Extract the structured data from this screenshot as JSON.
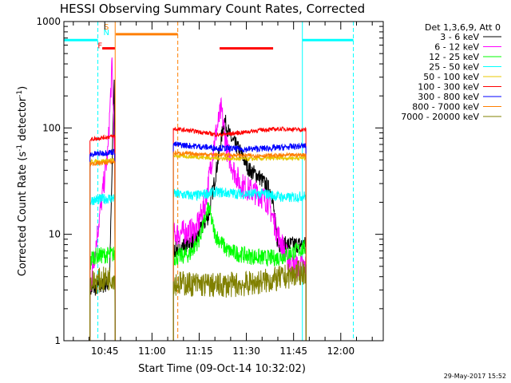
{
  "chart_data": {
    "type": "line",
    "title": "HESSI Observing Summary Count Rates, Corrected",
    "xlabel": "Start Time (09-Oct-14 10:32:02)",
    "ylabel_main": "Corrected Count Rate (s",
    "ylabel_sup1": "-1",
    "ylabel_mid": " detector",
    "ylabel_sup2": "-1",
    "ylabel_end": ")",
    "yscale": "log",
    "ylim": [
      1,
      1000
    ],
    "xlim_minutes": [
      632.0,
      733.5
    ],
    "x_ticks": [
      {
        "label": "10:45",
        "m": 645
      },
      {
        "label": "11:00",
        "m": 660
      },
      {
        "label": "11:15",
        "m": 675
      },
      {
        "label": "11:30",
        "m": 690
      },
      {
        "label": "11:45",
        "m": 705
      },
      {
        "label": "12:00",
        "m": 720
      }
    ],
    "y_ticks": [
      {
        "label": "1",
        "v": 1
      },
      {
        "label": "10",
        "v": 10
      },
      {
        "label": "100",
        "v": 100
      },
      {
        "label": "1000",
        "v": 1000
      }
    ],
    "legend_header": "Det 1,3,6,9, Att 0",
    "timestamp": "29-May-2017 15:52",
    "intervals": [
      {
        "start": 640.3,
        "end": 648.3
      },
      {
        "start": 666.8,
        "end": 709.0
      }
    ],
    "series": [
      {
        "name": "3 - 6 keV",
        "color": "#000000",
        "base": [
          [
            640.3,
            3
          ],
          [
            646.5,
            3.5
          ],
          [
            648.0,
            300
          ],
          [
            648.3,
            10
          ],
          [
            666.8,
            7
          ],
          [
            674,
            9
          ],
          [
            678,
            15
          ],
          [
            681,
            50
          ],
          [
            683,
            120
          ],
          [
            685,
            80
          ],
          [
            688,
            60
          ],
          [
            691,
            40
          ],
          [
            694,
            35
          ],
          [
            698,
            25
          ],
          [
            700,
            8
          ]
        ],
        "noise": 0.08
      },
      {
        "name": "6 - 12 keV",
        "color": "#ff00ff",
        "base": [
          [
            640.3,
            3
          ],
          [
            645,
            35
          ],
          [
            646,
            60
          ],
          [
            647.3,
            380
          ],
          [
            648.3,
            40
          ],
          [
            666.8,
            10
          ],
          [
            674,
            11
          ],
          [
            677,
            20
          ],
          [
            680,
            80
          ],
          [
            682,
            150
          ],
          [
            684,
            60
          ],
          [
            686,
            40
          ],
          [
            688,
            30
          ],
          [
            691,
            26
          ],
          [
            694,
            24
          ],
          [
            697,
            20
          ],
          [
            700,
            10
          ],
          [
            703,
            6
          ],
          [
            705,
            5
          ]
        ],
        "noise": 0.12
      },
      {
        "name": "12 - 25 keV",
        "color": "#00ff00",
        "base": [
          [
            640.3,
            5
          ],
          [
            641,
            6.2
          ],
          [
            648.3,
            6.5
          ],
          [
            666.8,
            6
          ],
          [
            672,
            6.5
          ],
          [
            675,
            9
          ],
          [
            678,
            18
          ],
          [
            680,
            10
          ],
          [
            684,
            7
          ],
          [
            690,
            6.3
          ],
          [
            696,
            6
          ],
          [
            700,
            6
          ],
          [
            706,
            7
          ],
          [
            709,
            7.5
          ]
        ],
        "noise": 0.08
      },
      {
        "name": "25 - 50 keV",
        "color": "#00ffff",
        "base": [
          [
            640.3,
            20
          ],
          [
            641,
            21
          ],
          [
            648.3,
            22
          ],
          [
            666.8,
            24
          ],
          [
            674,
            23
          ],
          [
            680,
            25
          ],
          [
            688,
            24
          ],
          [
            696,
            24
          ],
          [
            703,
            22
          ],
          [
            709,
            23
          ]
        ],
        "noise": 0.05
      },
      {
        "name": "50 - 100 keV",
        "color": "#e8c800",
        "base": [
          [
            640.3,
            48
          ],
          [
            648.3,
            50
          ],
          [
            666.8,
            55
          ],
          [
            680,
            52
          ],
          [
            690,
            51
          ],
          [
            700,
            52
          ],
          [
            709,
            52
          ]
        ],
        "noise": 0.02
      },
      {
        "name": "100 - 300 keV",
        "color": "#ff0000",
        "base": [
          [
            640.3,
            78
          ],
          [
            648.3,
            84
          ],
          [
            666.8,
            98
          ],
          [
            675,
            92
          ],
          [
            681,
            86
          ],
          [
            688,
            90
          ],
          [
            695,
            96
          ],
          [
            702,
            98
          ],
          [
            709,
            96
          ]
        ],
        "noise": 0.02
      },
      {
        "name": "300 - 800 keV",
        "color": "#0000ff",
        "base": [
          [
            640.3,
            56
          ],
          [
            648.3,
            60
          ],
          [
            666.8,
            70
          ],
          [
            680,
            65
          ],
          [
            690,
            63
          ],
          [
            700,
            65
          ],
          [
            709,
            68
          ]
        ],
        "noise": 0.03
      },
      {
        "name": "800 - 7000 keV",
        "color": "#ff7f00",
        "base": [
          [
            640.3,
            46
          ],
          [
            648.3,
            48
          ],
          [
            666.8,
            58
          ],
          [
            680,
            56
          ],
          [
            690,
            55
          ],
          [
            700,
            55
          ],
          [
            709,
            56
          ]
        ],
        "noise": 0.02
      },
      {
        "name": "7000 - 20000 keV",
        "color": "#808000",
        "base": [
          [
            640.3,
            3.5
          ],
          [
            648.3,
            4
          ],
          [
            666.8,
            3.5
          ],
          [
            680,
            3.3
          ],
          [
            690,
            3.4
          ],
          [
            700,
            3.8
          ],
          [
            709,
            4.5
          ]
        ],
        "noise": 0.12
      }
    ],
    "flags": [
      {
        "label": "",
        "color": "#00ffff",
        "start": 632.0,
        "end": 642.8,
        "v": 670,
        "dashed_end": true
      },
      {
        "label": "",
        "color": "#00ffff",
        "start": 707.8,
        "end": 724.0,
        "v": 670,
        "dashed_end": true
      },
      {
        "label": "S",
        "color": "#ff7f00",
        "start": 648.5,
        "end": 668.2,
        "v": 760,
        "dashed_end": true
      },
      {
        "label": "F",
        "color": "#ff0000",
        "start": 644.2,
        "end": 648.2,
        "v": 560,
        "dashed_end": false
      },
      {
        "label": "",
        "color": "#ff0000",
        "start": 681.5,
        "end": 698.5,
        "v": 560,
        "dashed_end": false
      }
    ],
    "flag_letters": [
      {
        "label": "S",
        "color": "#ff7f00",
        "m": 645.5,
        "v": 900
      },
      {
        "label": "N",
        "color": "#00ffff",
        "m": 645.5,
        "v": 800
      },
      {
        "label": "F",
        "color": "#ff0000",
        "m": 643.5,
        "v": 600
      }
    ],
    "verticals": [
      {
        "m": 632.0,
        "color": "#00ffff",
        "dashed": false
      },
      {
        "m": 642.8,
        "color": "#00ffff",
        "dashed": true
      },
      {
        "m": 648.3,
        "color": "#ff7f00",
        "dashed": false
      },
      {
        "m": 668.2,
        "color": "#ff7f00",
        "dashed": true
      },
      {
        "m": 707.8,
        "color": "#00ffff",
        "dashed": false
      },
      {
        "m": 724.0,
        "color": "#00ffff",
        "dashed": true
      }
    ]
  }
}
